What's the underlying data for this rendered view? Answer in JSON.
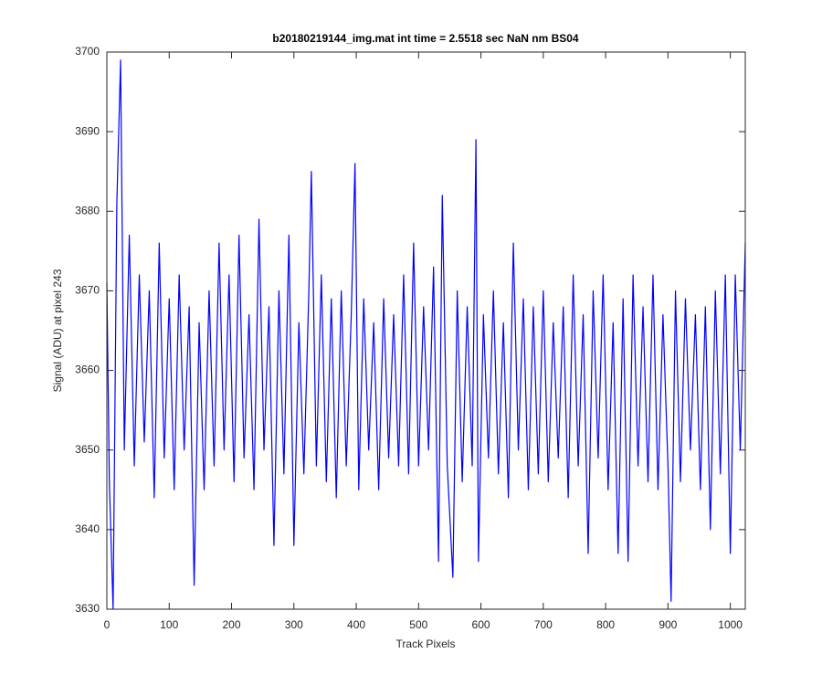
{
  "chart_data": {
    "type": "line",
    "title": "b20180219144_img.mat int time = 2.5518 sec  NaN nm BS04",
    "x_label": "Track Pixels",
    "y_label": "Signal (ADU) at pixel 243",
    "xlim": [
      0,
      1024
    ],
    "xticks": [
      0,
      100,
      200,
      300,
      400,
      500,
      600,
      700,
      800,
      900,
      1000
    ],
    "ylim": [
      3630,
      3700
    ],
    "yticks": [
      3630,
      3640,
      3650,
      3660,
      3670,
      3680,
      3690,
      3700
    ],
    "grid": false,
    "series": [
      {
        "color": "#0000ff",
        "x": [
          0,
          4,
          10,
          16,
          22,
          28,
          36,
          44,
          52,
          60,
          68,
          76,
          84,
          92,
          100,
          108,
          116,
          124,
          132,
          140,
          148,
          156,
          164,
          172,
          180,
          188,
          196,
          204,
          212,
          220,
          228,
          236,
          244,
          252,
          260,
          268,
          276,
          284,
          292,
          300,
          308,
          316,
          324,
          328,
          336,
          344,
          352,
          360,
          368,
          376,
          384,
          392,
          398,
          404,
          412,
          420,
          428,
          436,
          444,
          452,
          460,
          468,
          476,
          484,
          492,
          500,
          508,
          516,
          524,
          532,
          538,
          546,
          555,
          562,
          570,
          578,
          586,
          592,
          596,
          604,
          612,
          620,
          628,
          636,
          644,
          652,
          660,
          668,
          676,
          684,
          692,
          700,
          708,
          716,
          724,
          732,
          740,
          748,
          756,
          764,
          772,
          780,
          788,
          796,
          804,
          812,
          820,
          828,
          836,
          844,
          852,
          860,
          868,
          876,
          884,
          892,
          900,
          905,
          912,
          920,
          928,
          936,
          944,
          952,
          960,
          968,
          976,
          984,
          992,
          1000,
          1008,
          1016,
          1024
        ],
        "values": [
          3671,
          3646,
          3630,
          3681,
          3699,
          3650,
          3677,
          3648,
          3672,
          3651,
          3670,
          3644,
          3676,
          3649,
          3669,
          3645,
          3672,
          3650,
          3668,
          3633,
          3666,
          3645,
          3670,
          3648,
          3676,
          3650,
          3672,
          3646,
          3677,
          3649,
          3667,
          3645,
          3679,
          3650,
          3668,
          3638,
          3670,
          3647,
          3677,
          3638,
          3666,
          3647,
          3670,
          3685,
          3648,
          3672,
          3646,
          3669,
          3644,
          3670,
          3648,
          3667,
          3686,
          3645,
          3669,
          3650,
          3666,
          3645,
          3669,
          3649,
          3667,
          3648,
          3672,
          3647,
          3676,
          3648,
          3668,
          3650,
          3673,
          3636,
          3682,
          3648,
          3634,
          3670,
          3646,
          3668,
          3648,
          3689,
          3636,
          3667,
          3649,
          3670,
          3647,
          3666,
          3644,
          3676,
          3650,
          3669,
          3645,
          3668,
          3647,
          3670,
          3646,
          3666,
          3649,
          3668,
          3644,
          3672,
          3648,
          3667,
          3637,
          3670,
          3649,
          3672,
          3645,
          3666,
          3637,
          3669,
          3636,
          3672,
          3648,
          3668,
          3646,
          3672,
          3645,
          3667,
          3648,
          3631,
          3670,
          3646,
          3669,
          3650,
          3667,
          3645,
          3668,
          3640,
          3670,
          3647,
          3672,
          3637,
          3672,
          3650,
          3676
        ]
      }
    ]
  }
}
